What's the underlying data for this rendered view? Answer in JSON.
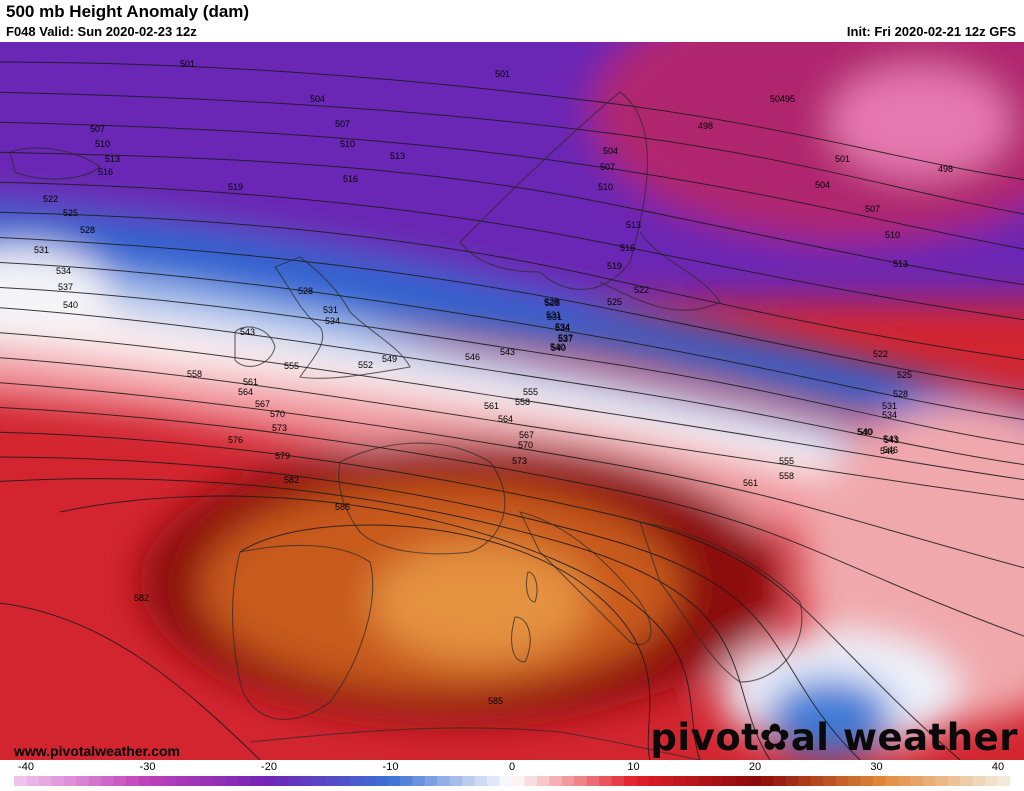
{
  "header": {
    "title": "500 mb Height Anomaly (dam)",
    "valid": "F048 Valid: Sun 2020-02-23 12z",
    "init": "Init: Fri 2020-02-21 12z GFS"
  },
  "footer": {
    "website": "www.pivotalweather.com",
    "logo_part1": "pivot",
    "logo_dot": "✿",
    "logo_part2": "al weather"
  },
  "colorbar": {
    "min": -40,
    "max": 40,
    "ticks": [
      "-40",
      "-30",
      "-20",
      "-10",
      "0",
      "10",
      "20",
      "30",
      "40"
    ],
    "colors": {
      "neg40": "#f0c2ee",
      "neg30": "#c043b8",
      "neg20": "#7224b6",
      "neg10": "#3b6fd4",
      "zero": "#ffffff",
      "pos10": "#e0202a",
      "pos20": "#8a0a0a",
      "pos30": "#e08838",
      "pos40": "#f2ebd8"
    }
  },
  "contour_labels": [
    {
      "text": "501"
    },
    {
      "text": "501"
    },
    {
      "text": "504"
    },
    {
      "text": "504"
    },
    {
      "text": "507"
    },
    {
      "text": "507"
    },
    {
      "text": "510"
    },
    {
      "text": "510"
    },
    {
      "text": "513"
    },
    {
      "text": "513"
    },
    {
      "text": "516"
    },
    {
      "text": "516"
    },
    {
      "text": "519"
    },
    {
      "text": "522"
    },
    {
      "text": "525"
    },
    {
      "text": "528"
    },
    {
      "text": "531"
    },
    {
      "text": "534"
    },
    {
      "text": "537"
    },
    {
      "text": "540"
    },
    {
      "text": "495"
    },
    {
      "text": "498"
    },
    {
      "text": "498"
    },
    {
      "text": "501"
    },
    {
      "text": "504"
    },
    {
      "text": "507"
    },
    {
      "text": "510"
    },
    {
      "text": "513"
    },
    {
      "text": "504"
    },
    {
      "text": "507"
    },
    {
      "text": "510"
    },
    {
      "text": "513"
    },
    {
      "text": "516"
    },
    {
      "text": "519"
    },
    {
      "text": "522"
    },
    {
      "text": "525"
    },
    {
      "text": "528"
    },
    {
      "text": "531"
    },
    {
      "text": "534"
    },
    {
      "text": "537"
    },
    {
      "text": "540"
    },
    {
      "text": "543"
    },
    {
      "text": "546"
    },
    {
      "text": "549"
    },
    {
      "text": "552"
    },
    {
      "text": "555"
    },
    {
      "text": "558"
    },
    {
      "text": "561"
    },
    {
      "text": "564"
    },
    {
      "text": "567"
    },
    {
      "text": "570"
    },
    {
      "text": "573"
    },
    {
      "text": "576"
    },
    {
      "text": "579"
    },
    {
      "text": "582"
    },
    {
      "text": "585"
    },
    {
      "text": "582"
    },
    {
      "text": "585"
    },
    {
      "text": "546"
    },
    {
      "text": "543"
    },
    {
      "text": "540"
    },
    {
      "text": "537"
    },
    {
      "text": "534"
    },
    {
      "text": "531"
    },
    {
      "text": "528"
    },
    {
      "text": "555"
    },
    {
      "text": "558"
    },
    {
      "text": "561"
    },
    {
      "text": "564"
    },
    {
      "text": "567"
    },
    {
      "text": "570"
    },
    {
      "text": "573"
    },
    {
      "text": "555"
    },
    {
      "text": "558"
    },
    {
      "text": "561"
    },
    {
      "text": "522"
    },
    {
      "text": "525"
    },
    {
      "text": "528"
    },
    {
      "text": "531"
    },
    {
      "text": "534"
    },
    {
      "text": "540"
    },
    {
      "text": "543"
    },
    {
      "text": "546"
    },
    {
      "text": "528"
    },
    {
      "text": "531"
    },
    {
      "text": "534"
    },
    {
      "text": "540"
    },
    {
      "text": "543"
    }
  ]
}
